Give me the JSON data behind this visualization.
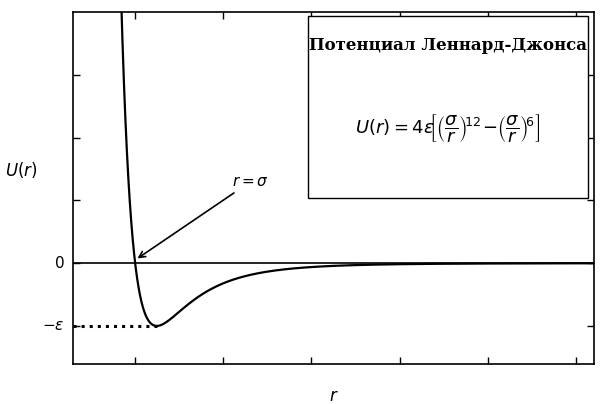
{
  "title": "Потенциал Леннард-Джонса",
  "xlabel": "$r$",
  "ylabel": "$U(r)$",
  "sigma": 1.0,
  "epsilon": 1.0,
  "x_start": 0.815,
  "x_end": 3.6,
  "ylim_bottom": -1.6,
  "ylim_top": 4.0,
  "xlim_left": 0.65,
  "xlim_right": 3.6,
  "minus_epsilon_label": "$-\\varepsilon$",
  "r_sigma_label": "$r=\\sigma$",
  "formula": "$U(r)=4\\varepsilon\\!\\left[\\left(\\dfrac{\\sigma}{r}\\right)^{\\!12}\\!-\\!\\left(\\dfrac{\\sigma}{r}\\right)^{\\!6}\\right]$",
  "line_color": "#000000",
  "dashed_color": "#000000",
  "background_color": "#ffffff",
  "title_fontsize": 12,
  "label_fontsize": 12,
  "formula_fontsize": 13,
  "annotation_fontsize": 11,
  "tick_label_fontsize": 11
}
